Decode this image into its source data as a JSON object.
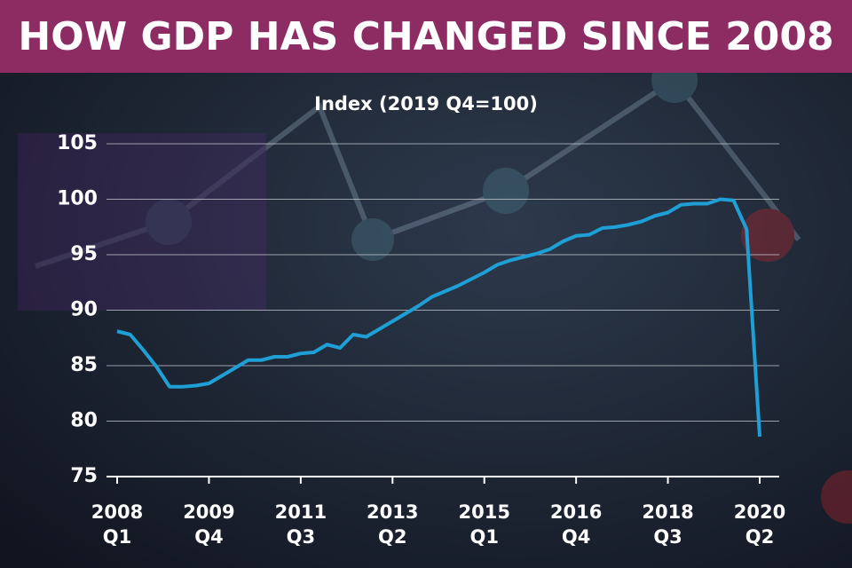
{
  "chart_data": {
    "type": "line",
    "title": "HOW GDP HAS CHANGED SINCE 2008",
    "subtitle": "Index (2019 Q4=100)",
    "categories": [
      [
        "2008",
        "Q1"
      ],
      null,
      null,
      null,
      null,
      null,
      null,
      [
        "2009",
        "Q4"
      ],
      null,
      null,
      null,
      null,
      null,
      null,
      [
        "2011",
        "Q3"
      ],
      null,
      null,
      null,
      null,
      null,
      null,
      [
        "2013",
        "Q2"
      ],
      null,
      null,
      null,
      null,
      null,
      null,
      [
        "2015",
        "Q1"
      ],
      null,
      null,
      null,
      null,
      null,
      null,
      [
        "2016",
        "Q4"
      ],
      null,
      null,
      null,
      null,
      null,
      null,
      [
        "2018",
        "Q3"
      ],
      null,
      null,
      null,
      null,
      null,
      null,
      [
        "2020",
        "Q2"
      ]
    ],
    "values": [
      88.1,
      87.8,
      86.4,
      84.9,
      83.1,
      83.1,
      83.2,
      83.4,
      84.1,
      84.8,
      85.5,
      85.5,
      85.8,
      85.8,
      86.1,
      86.2,
      86.9,
      86.6,
      87.8,
      87.6,
      88.3,
      89.0,
      89.7,
      90.4,
      91.2,
      91.7,
      92.2,
      92.8,
      93.4,
      94.1,
      94.5,
      94.8,
      95.1,
      95.5,
      96.2,
      96.7,
      96.8,
      97.4,
      97.5,
      97.7,
      98.0,
      98.5,
      98.8,
      99.5,
      99.6,
      99.6,
      100.0,
      99.9,
      97.3,
      78.6
    ],
    "color": "#1e9fd6",
    "ylim": [
      75,
      105
    ],
    "yticks": [
      75,
      80,
      85,
      90,
      95,
      100,
      105
    ],
    "grid": true
  }
}
